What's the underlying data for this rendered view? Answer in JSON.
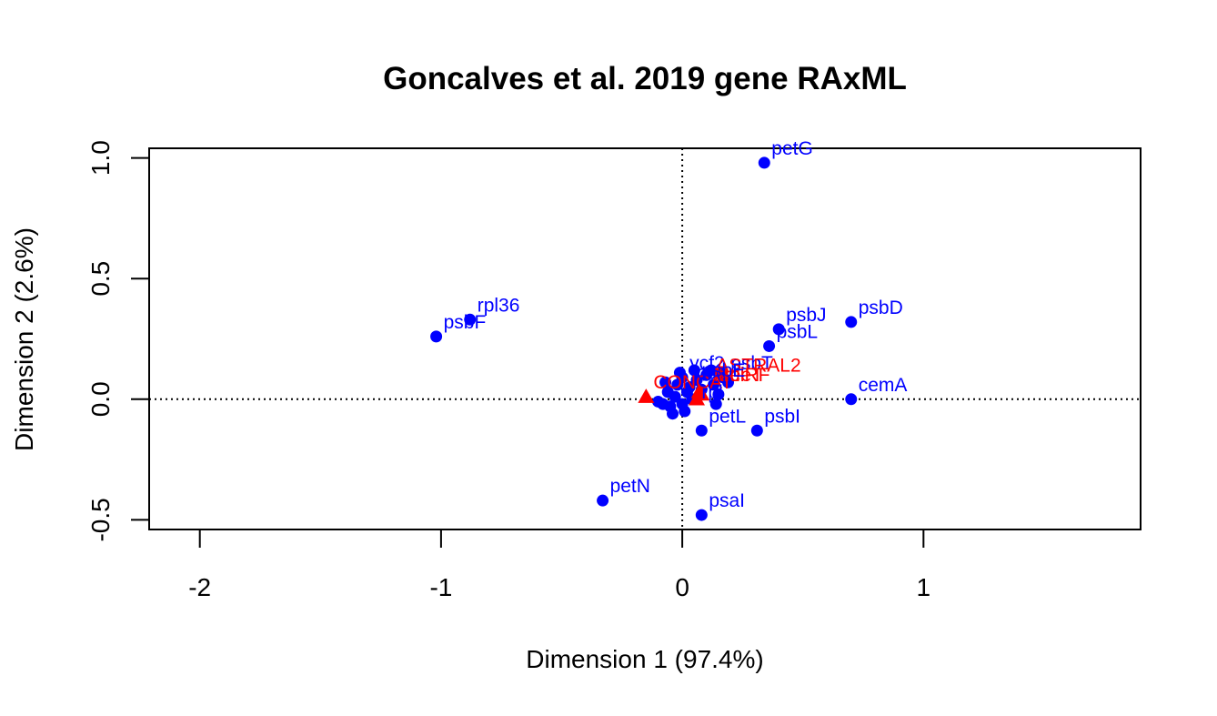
{
  "chart_data": {
    "type": "scatter",
    "title": "Goncalves et al. 2019 gene RAxML",
    "xlabel": "Dimension 1 (97.4%)",
    "ylabel": "Dimension 2 (2.6%)",
    "xlim": [
      -2.21,
      1.9
    ],
    "ylim": [
      -0.54,
      1.04
    ],
    "xticks": [
      -2,
      -1,
      0,
      1
    ],
    "xtick_labels": [
      "-2",
      "-1",
      "0",
      "1"
    ],
    "yticks": [
      -0.5,
      0.0,
      0.5,
      1.0
    ],
    "ytick_labels": [
      "-0.5",
      "0.0",
      "0.5",
      "1.0"
    ],
    "reference_lines": {
      "x": 0,
      "y": 0,
      "style": "dotted"
    },
    "grid": false,
    "legend": "none",
    "colors": {
      "genes": "#0000ff",
      "concatenated": "#ff0000",
      "axes": "#000000"
    },
    "series": [
      {
        "color": "#0000ff",
        "marker": "circle",
        "points": [
          {
            "label": "petG",
            "x": 0.34,
            "y": 0.98
          },
          {
            "label": "rpl36",
            "x": -0.88,
            "y": 0.33
          },
          {
            "label": "psbF",
            "x": -1.02,
            "y": 0.26
          },
          {
            "label": "psbD",
            "x": 0.7,
            "y": 0.32
          },
          {
            "label": "psbJ",
            "x": 0.4,
            "y": 0.29
          },
          {
            "label": "psbL",
            "x": 0.36,
            "y": 0.22
          },
          {
            "label": "psbT",
            "x": 0.17,
            "y": 0.09
          },
          {
            "label": "ycf2",
            "x": 0.0,
            "y": 0.09
          },
          {
            "label": "cemA",
            "x": 0.7,
            "y": 0.0
          },
          {
            "label": "petL",
            "x": 0.08,
            "y": -0.13
          },
          {
            "label": "psbI",
            "x": 0.31,
            "y": -0.13
          },
          {
            "label": "petN",
            "x": -0.33,
            "y": -0.42
          },
          {
            "label": "psaI",
            "x": 0.08,
            "y": -0.48
          },
          {
            "label": "",
            "x": -0.04,
            "y": -0.06
          },
          {
            "label": "",
            "x": 0.01,
            "y": -0.05
          },
          {
            "label": "",
            "x": -0.08,
            "y": -0.02
          },
          {
            "label": "",
            "x": -0.06,
            "y": 0.03
          },
          {
            "label": "",
            "x": -0.02,
            "y": 0.06
          },
          {
            "label": "",
            "x": 0.03,
            "y": 0.05
          },
          {
            "label": "",
            "x": 0.06,
            "y": 0.08
          },
          {
            "label": "",
            "x": 0.1,
            "y": 0.1
          },
          {
            "label": "",
            "x": 0.13,
            "y": 0.06
          },
          {
            "label": "",
            "x": 0.15,
            "y": 0.02
          },
          {
            "label": "",
            "x": 0.04,
            "y": 0.0
          },
          {
            "label": "",
            "x": -0.03,
            "y": 0.01
          },
          {
            "label": "",
            "x": 0.0,
            "y": -0.02
          },
          {
            "label": "",
            "x": -0.05,
            "y": -0.03
          },
          {
            "label": "",
            "x": 0.02,
            "y": 0.03
          },
          {
            "label": "",
            "x": -0.1,
            "y": -0.01
          },
          {
            "label": "",
            "x": 0.08,
            "y": 0.04
          },
          {
            "label": "",
            "x": 0.12,
            "y": 0.12
          },
          {
            "label": "",
            "x": 0.16,
            "y": 0.11
          },
          {
            "label": "",
            "x": 0.19,
            "y": 0.07
          },
          {
            "label": "",
            "x": -0.01,
            "y": 0.11
          },
          {
            "label": "",
            "x": 0.05,
            "y": 0.12
          },
          {
            "label": "",
            "x": 0.14,
            "y": -0.02
          },
          {
            "label": "",
            "x": -0.07,
            "y": 0.07
          }
        ]
      },
      {
        "color": "#ff0000",
        "marker": "triangle",
        "points": [
          {
            "label": "CONCAT",
            "x": -0.15,
            "y": 0.01
          },
          {
            "label": "",
            "x": 0.06,
            "y": 0.0
          },
          {
            "label": "",
            "x": 0.08,
            "y": 0.02
          },
          {
            "label": "",
            "x": 0.07,
            "y": 0.03
          }
        ]
      }
    ],
    "extra_labels": [
      {
        "text": "ASTRAL2",
        "x": 0.11,
        "y": 0.08,
        "color": "#ff0000"
      },
      {
        "text": "MulRF",
        "x": 0.1,
        "y": 0.04,
        "color": "#ff0000"
      },
      {
        "text": "treeT",
        "x": 0.12,
        "y": 0.04,
        "color": "#ff0000"
      },
      {
        "text": "cc",
        "x": 0.03,
        "y": 0.05,
        "color": "#0000ff"
      },
      {
        "text": "psbE",
        "x": 0.05,
        "y": 0.06,
        "color": "#0000ff"
      },
      {
        "text": "rpl",
        "x": 0.05,
        "y": -0.03,
        "color": "#0000ff"
      }
    ]
  }
}
